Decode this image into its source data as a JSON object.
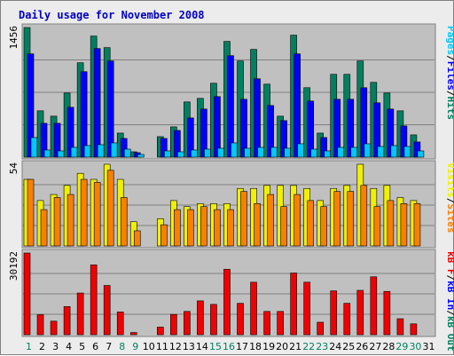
{
  "chart_data": {
    "title": "Daily usage for November 2008",
    "type": "bar",
    "x_labels": [
      "1",
      "2",
      "3",
      "4",
      "5",
      "6",
      "7",
      "8",
      "9",
      "10",
      "11",
      "12",
      "13",
      "14",
      "15",
      "16",
      "17",
      "18",
      "19",
      "20",
      "21",
      "22",
      "23",
      "24",
      "25",
      "26",
      "27",
      "28",
      "29",
      "30",
      "31"
    ],
    "weekend_days": [
      1,
      8,
      9,
      15,
      16,
      22,
      23,
      29,
      30
    ],
    "panels": [
      {
        "id": "hits-files-pages",
        "y_max_label": "1456",
        "ymax": 1456,
        "legend": [
          {
            "text": "Pages",
            "color": "#00c8f8"
          },
          {
            "text": "/",
            "color": "#000000"
          },
          {
            "text": "Files",
            "color": "#0000ff"
          },
          {
            "text": "/",
            "color": "#000000"
          },
          {
            "text": "Hits",
            "color": "#008060"
          }
        ],
        "series": [
          {
            "name": "Hits",
            "color": "#008060",
            "values": [
              1456,
              520,
              460,
              720,
              1060,
              1360,
              1230,
              270,
              60,
              0,
              230,
              340,
              620,
              660,
              830,
              1300,
              1080,
              1210,
              820,
              460,
              1370,
              780,
              270,
              930,
              930,
              1080,
              840,
              720,
              520,
              250,
              0
            ]
          },
          {
            "name": "Files",
            "color": "#0000ff",
            "values": [
              1160,
              380,
              380,
              560,
              960,
              1220,
              1080,
              210,
              50,
              0,
              210,
              300,
              440,
              540,
              680,
              1140,
              650,
              880,
              580,
              410,
              1160,
              630,
              220,
              650,
              650,
              780,
              610,
              540,
              350,
              170,
              0
            ]
          },
          {
            "name": "Pages",
            "color": "#00c8f8",
            "values": [
              220,
              80,
              70,
              110,
              130,
              140,
              160,
              90,
              30,
              0,
              70,
              60,
              80,
              90,
              100,
              160,
              100,
              110,
              110,
              100,
              150,
              90,
              70,
              110,
              110,
              150,
              120,
              130,
              120,
              70,
              0
            ]
          }
        ]
      },
      {
        "id": "visits-sites",
        "y_max_label": "54",
        "ymax": 54,
        "legend": [
          {
            "text": "Visits",
            "color": "#f0f000"
          },
          {
            "text": "/",
            "color": "#000000"
          },
          {
            "text": "Sites",
            "color": "#f88000"
          }
        ],
        "series": [
          {
            "name": "Visits",
            "color": "#f0f000",
            "values": [
              44,
              30,
              34,
              40,
              48,
              44,
              54,
              44,
              16,
              0,
              18,
              30,
              26,
              28,
              28,
              28,
              38,
              38,
              40,
              40,
              40,
              38,
              30,
              38,
              40,
              54,
              38,
              40,
              32,
              30,
              0
            ]
          },
          {
            "name": "Sites",
            "color": "#f88000",
            "values": [
              44,
              24,
              32,
              34,
              44,
              42,
              50,
              32,
              10,
              0,
              14,
              24,
              24,
              26,
              24,
              24,
              36,
              28,
              34,
              26,
              34,
              30,
              26,
              36,
              36,
              40,
              26,
              30,
              28,
              28,
              0
            ]
          }
        ]
      },
      {
        "id": "kbytes",
        "y_max_label": "30192",
        "ymax": 30192,
        "legend": [
          {
            "text": "kB F",
            "color": "#f00000"
          },
          {
            "text": "/",
            "color": "#000000"
          },
          {
            "text": "kB In",
            "color": "#0000ff"
          },
          {
            "text": "/",
            "color": "#000000"
          },
          {
            "text": "kB Out",
            "color": "#008060"
          }
        ],
        "series": [
          {
            "name": "kB F",
            "color": "#f00000",
            "values": [
              30192,
              7400,
              5000,
              10400,
              15400,
              25800,
              18200,
              8400,
              800,
              0,
              2800,
              7500,
              8600,
              12500,
              11200,
              24200,
              11600,
              19400,
              8600,
              8600,
              22800,
              19400,
              4600,
              16200,
              11600,
              16400,
              21400,
              16000,
              5900,
              4000,
              0
            ]
          }
        ]
      }
    ]
  },
  "colors": {
    "panel_bg": "#c0c0c0",
    "frame_bg": "#ececec",
    "grid": "#808080",
    "title": "#0000c0",
    "weekend_label": "#008060",
    "weekday_label": "#000000"
  }
}
